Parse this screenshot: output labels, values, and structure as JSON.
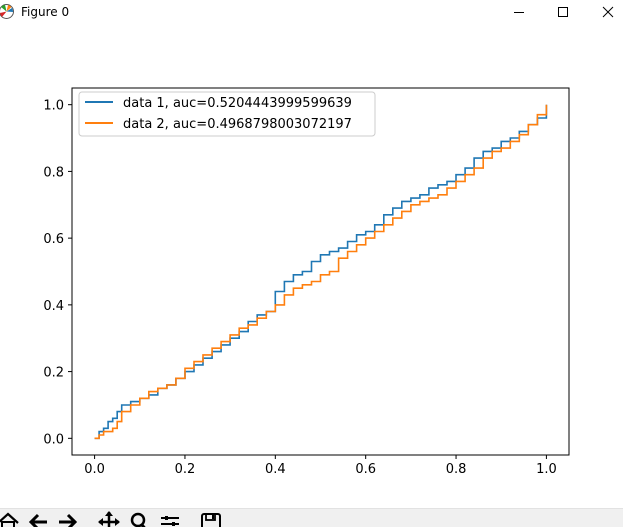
{
  "window": {
    "title": "Figure 0",
    "icon": "matplotlib-icon",
    "controls": [
      "minimize-icon",
      "maximize-icon",
      "close-icon"
    ]
  },
  "chart_data": {
    "type": "line",
    "title": "",
    "xlabel": "",
    "ylabel": "",
    "xlim": [
      -0.05,
      1.05
    ],
    "ylim": [
      -0.05,
      1.05
    ],
    "xticks": [
      "0.0",
      "0.2",
      "0.4",
      "0.6",
      "0.8",
      "1.0"
    ],
    "yticks": [
      "0.0",
      "0.2",
      "0.4",
      "0.6",
      "0.8",
      "1.0"
    ],
    "grid": false,
    "legend_position": "upper-left",
    "series": [
      {
        "name": "data 1, auc=0.5204443999599639",
        "color": "#1f77b4",
        "x": [
          0.0,
          0.01,
          0.02,
          0.03,
          0.04,
          0.05,
          0.06,
          0.08,
          0.1,
          0.12,
          0.14,
          0.16,
          0.18,
          0.2,
          0.22,
          0.24,
          0.26,
          0.28,
          0.3,
          0.32,
          0.34,
          0.36,
          0.38,
          0.4,
          0.42,
          0.44,
          0.46,
          0.48,
          0.5,
          0.52,
          0.54,
          0.56,
          0.58,
          0.6,
          0.62,
          0.64,
          0.66,
          0.68,
          0.7,
          0.72,
          0.74,
          0.76,
          0.78,
          0.8,
          0.82,
          0.84,
          0.86,
          0.88,
          0.9,
          0.92,
          0.94,
          0.96,
          0.98,
          1.0
        ],
        "y": [
          0.0,
          0.02,
          0.03,
          0.05,
          0.06,
          0.08,
          0.1,
          0.11,
          0.12,
          0.13,
          0.15,
          0.16,
          0.18,
          0.2,
          0.22,
          0.24,
          0.26,
          0.28,
          0.3,
          0.32,
          0.35,
          0.37,
          0.38,
          0.44,
          0.47,
          0.49,
          0.5,
          0.53,
          0.55,
          0.56,
          0.57,
          0.59,
          0.61,
          0.62,
          0.64,
          0.67,
          0.69,
          0.71,
          0.72,
          0.73,
          0.75,
          0.76,
          0.77,
          0.79,
          0.81,
          0.84,
          0.86,
          0.87,
          0.89,
          0.9,
          0.92,
          0.94,
          0.96,
          1.0
        ]
      },
      {
        "name": "data 2, auc=0.4968798003072197",
        "color": "#ff7f0e",
        "x": [
          0.0,
          0.01,
          0.02,
          0.03,
          0.04,
          0.05,
          0.06,
          0.08,
          0.1,
          0.12,
          0.14,
          0.16,
          0.18,
          0.2,
          0.22,
          0.24,
          0.26,
          0.28,
          0.3,
          0.32,
          0.34,
          0.36,
          0.38,
          0.4,
          0.42,
          0.44,
          0.46,
          0.48,
          0.5,
          0.52,
          0.54,
          0.56,
          0.58,
          0.6,
          0.62,
          0.64,
          0.66,
          0.68,
          0.7,
          0.72,
          0.74,
          0.76,
          0.78,
          0.8,
          0.82,
          0.84,
          0.86,
          0.88,
          0.9,
          0.92,
          0.94,
          0.96,
          0.98,
          1.0
        ],
        "y": [
          0.0,
          0.01,
          0.02,
          0.02,
          0.03,
          0.05,
          0.08,
          0.1,
          0.12,
          0.14,
          0.15,
          0.16,
          0.18,
          0.21,
          0.23,
          0.25,
          0.27,
          0.29,
          0.31,
          0.33,
          0.34,
          0.36,
          0.38,
          0.4,
          0.43,
          0.45,
          0.46,
          0.47,
          0.49,
          0.5,
          0.54,
          0.56,
          0.58,
          0.6,
          0.62,
          0.64,
          0.66,
          0.68,
          0.7,
          0.71,
          0.72,
          0.73,
          0.75,
          0.77,
          0.79,
          0.81,
          0.84,
          0.86,
          0.87,
          0.89,
          0.91,
          0.94,
          0.97,
          1.0
        ]
      }
    ]
  },
  "toolbar": {
    "buttons": [
      "home-icon",
      "back-icon",
      "forward-icon",
      "pan-icon",
      "zoom-icon",
      "subplots-icon",
      "save-icon"
    ]
  }
}
